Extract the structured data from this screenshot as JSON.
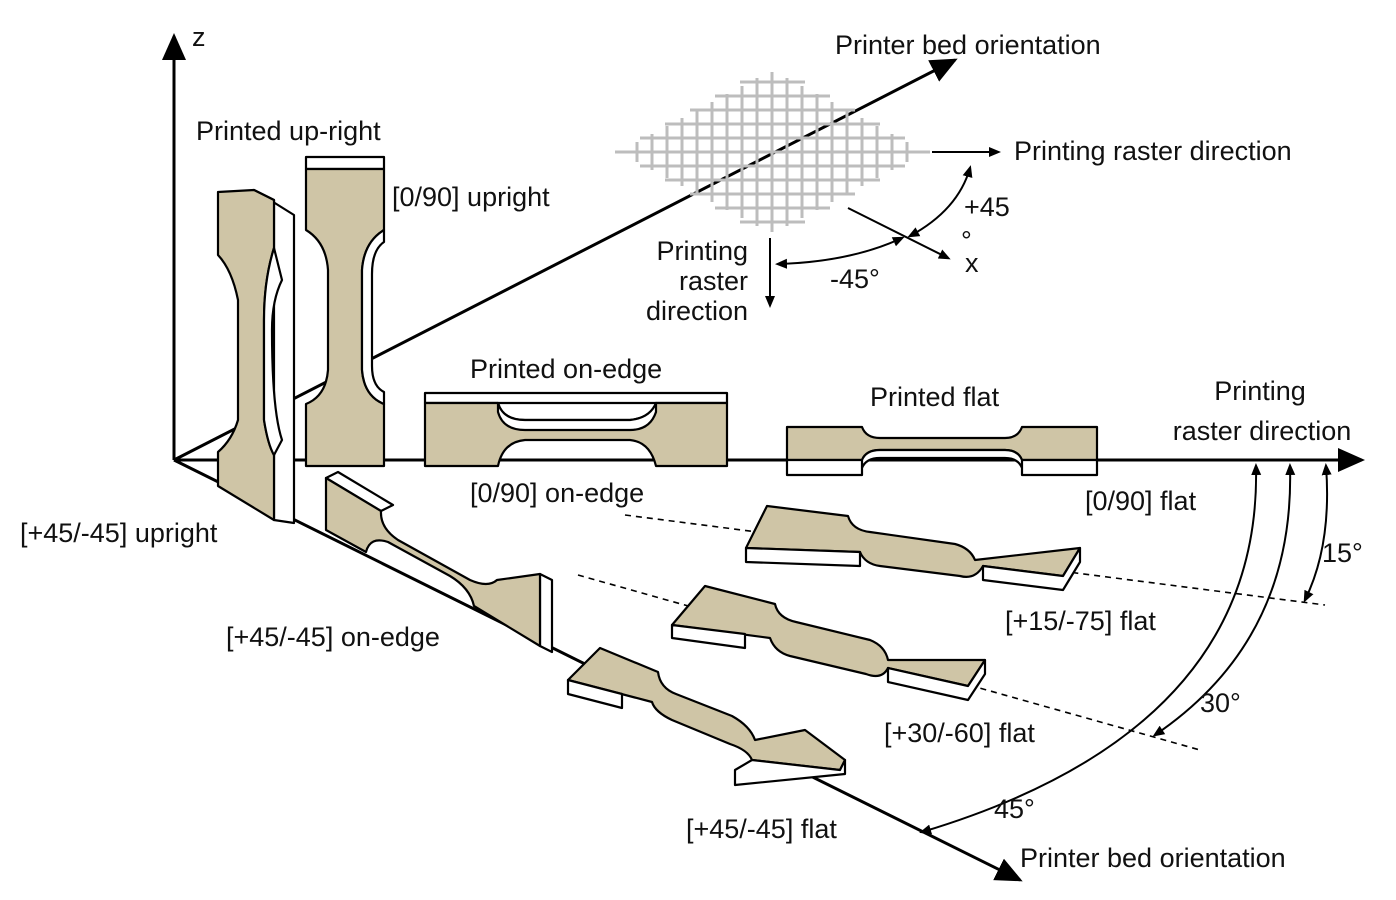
{
  "colors": {
    "specimen": "#cfc5a6",
    "mesh": "#bdbdbd",
    "line": "#000000"
  },
  "axes": {
    "z": "z",
    "x": "x",
    "degree_mark": "°",
    "bed_orientation_top": "Printer bed orientation",
    "bed_orientation_bottom": "Printer bed orientation"
  },
  "raster": {
    "right_label": "Printing raster direction",
    "down_label_1": "Printing",
    "down_label_2": "raster",
    "down_label_3": "direction",
    "plus45": "+45",
    "minus45": "-45°",
    "side_label_1": "Printing",
    "side_label_2": "raster direction"
  },
  "headings": {
    "upright": "Printed up-right",
    "on_edge": "Printed on-edge",
    "flat": "Printed flat"
  },
  "specimens": {
    "upright_0_90": "[0/90] upright",
    "upright_45": "[+45/-45] upright",
    "on_edge_0_90": "[0/90] on-edge",
    "on_edge_45": "[+45/-45] on-edge",
    "flat_0_90": "[0/90] flat",
    "flat_15": "[+15/-75] flat",
    "flat_30": "[+30/-60] flat",
    "flat_45": "[+45/-45] flat"
  },
  "angles": {
    "a15": "15°",
    "a30": "30°",
    "a45": "45°"
  }
}
